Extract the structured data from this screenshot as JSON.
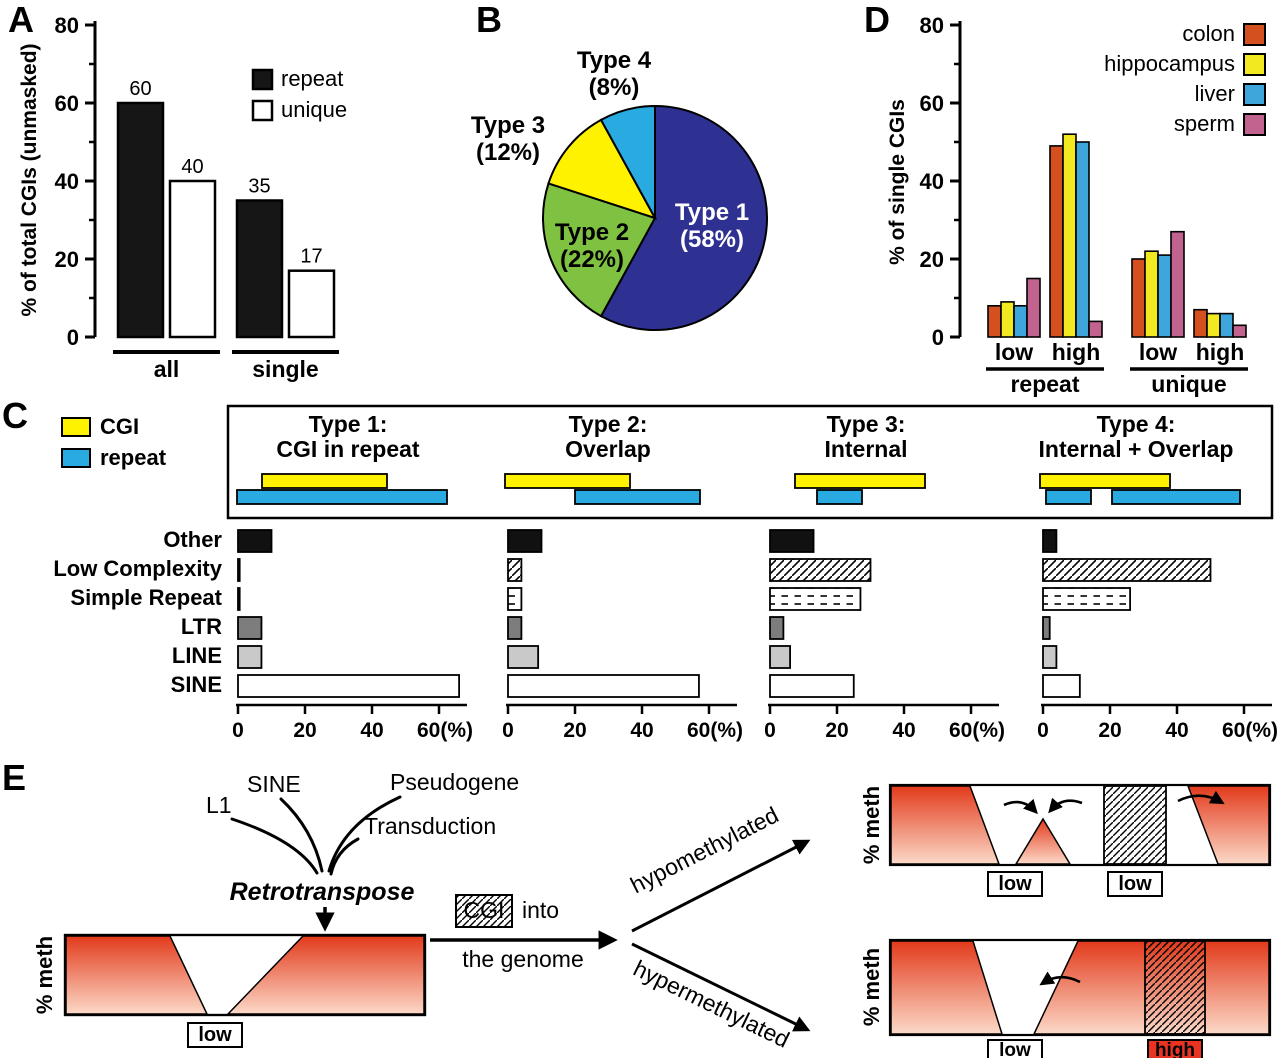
{
  "panels": {
    "a": "A",
    "b": "B",
    "c": "C",
    "d": "D",
    "e": "E"
  },
  "chart_data": [
    {
      "id": "A",
      "type": "bar",
      "ylabel": "% of total CGIs (unmasked)",
      "categories": [
        "all",
        "single"
      ],
      "series": [
        {
          "name": "repeat",
          "color": "#161616",
          "values": [
            60,
            35
          ]
        },
        {
          "name": "unique",
          "color": "#ffffff",
          "values": [
            40,
            17
          ]
        }
      ],
      "ylim": [
        0,
        80
      ],
      "yticks": [
        0,
        20,
        40,
        60,
        80
      ],
      "legend_position": "top-right",
      "bar_value_labels": true
    },
    {
      "id": "B",
      "type": "pie",
      "slices": [
        {
          "label": "Type 1",
          "pct": 58,
          "color": "#2e3192",
          "label_color": "#ffffff"
        },
        {
          "label": "Type 2",
          "pct": 22,
          "color": "#7fc241",
          "label_color": "#000000"
        },
        {
          "label": "Type 3",
          "pct": 12,
          "color": "#fff200",
          "label_color": "#000000"
        },
        {
          "label": "Type 4",
          "pct": 8,
          "color": "#29abe2",
          "label_color": "#000000"
        }
      ],
      "start_angle_deg": -90,
      "clockwise": true
    },
    {
      "id": "C",
      "type": "horizontal-bar-small-multiples",
      "legend": [
        {
          "label": "CGI",
          "color": "#fff200"
        },
        {
          "label": "repeat",
          "color": "#29abe2"
        }
      ],
      "rows": [
        "Other",
        "Low Complexity",
        "Simple Repeat",
        "LTR",
        "LINE",
        "SINE"
      ],
      "row_fill_styles": [
        "black",
        "diagonal-hatch",
        "dash-texture",
        "dark-gray",
        "light-gray",
        "white"
      ],
      "xticks": [
        0,
        20,
        40,
        60
      ],
      "x_axis_suffix": "(%)",
      "xlim": [
        0,
        68
      ],
      "subpanels": [
        {
          "title_line1": "Type 1:",
          "title_line2": "CGI in repeat",
          "values": [
            10,
            0.5,
            0.5,
            7,
            7,
            66
          ]
        },
        {
          "title_line1": "Type 2:",
          "title_line2": "Overlap",
          "values": [
            10,
            4,
            4,
            4,
            9,
            57
          ]
        },
        {
          "title_line1": "Type 3:",
          "title_line2": "Internal",
          "values": [
            13,
            30,
            27,
            4,
            6,
            25
          ]
        },
        {
          "title_line1": "Type 4:",
          "title_line2": "Internal + Overlap",
          "values": [
            4,
            50,
            26,
            2,
            4,
            11
          ]
        }
      ]
    },
    {
      "id": "D",
      "type": "grouped-bar",
      "ylabel": "% of single CGIs",
      "categories": [
        "low",
        "high",
        "low",
        "high"
      ],
      "sections": [
        "repeat",
        "unique"
      ],
      "series": [
        {
          "name": "colon",
          "color": "#d4501e",
          "values": [
            8,
            49,
            20,
            7
          ]
        },
        {
          "name": "hippocampus",
          "color": "#f3e921",
          "values": [
            9,
            52,
            22,
            6
          ]
        },
        {
          "name": "liver",
          "color": "#3fa6db",
          "values": [
            8,
            50,
            21,
            6
          ]
        },
        {
          "name": "sperm",
          "color": "#c2628f",
          "values": [
            15,
            4,
            27,
            3
          ]
        }
      ],
      "ylim": [
        0,
        80
      ],
      "yticks": [
        0,
        20,
        40,
        60,
        80
      ],
      "legend_position": "top-right"
    }
  ],
  "panelE": {
    "source_labels": [
      "L1",
      "SINE",
      "Pseudogene",
      "Transduction"
    ],
    "action_label": "Retrotranspose",
    "cgi_label": "CGI",
    "into_label": "into",
    "genome_label": "the genome",
    "branch_up_label": "hypomethylated",
    "branch_down_label": "hypermethylated",
    "axis_label": "% meth",
    "low_label": "low",
    "high_label": "high",
    "colors": {
      "red_top": "#e23a1b",
      "red_bottom": "#fcd9c8",
      "high_fill": "#ea3323"
    }
  }
}
